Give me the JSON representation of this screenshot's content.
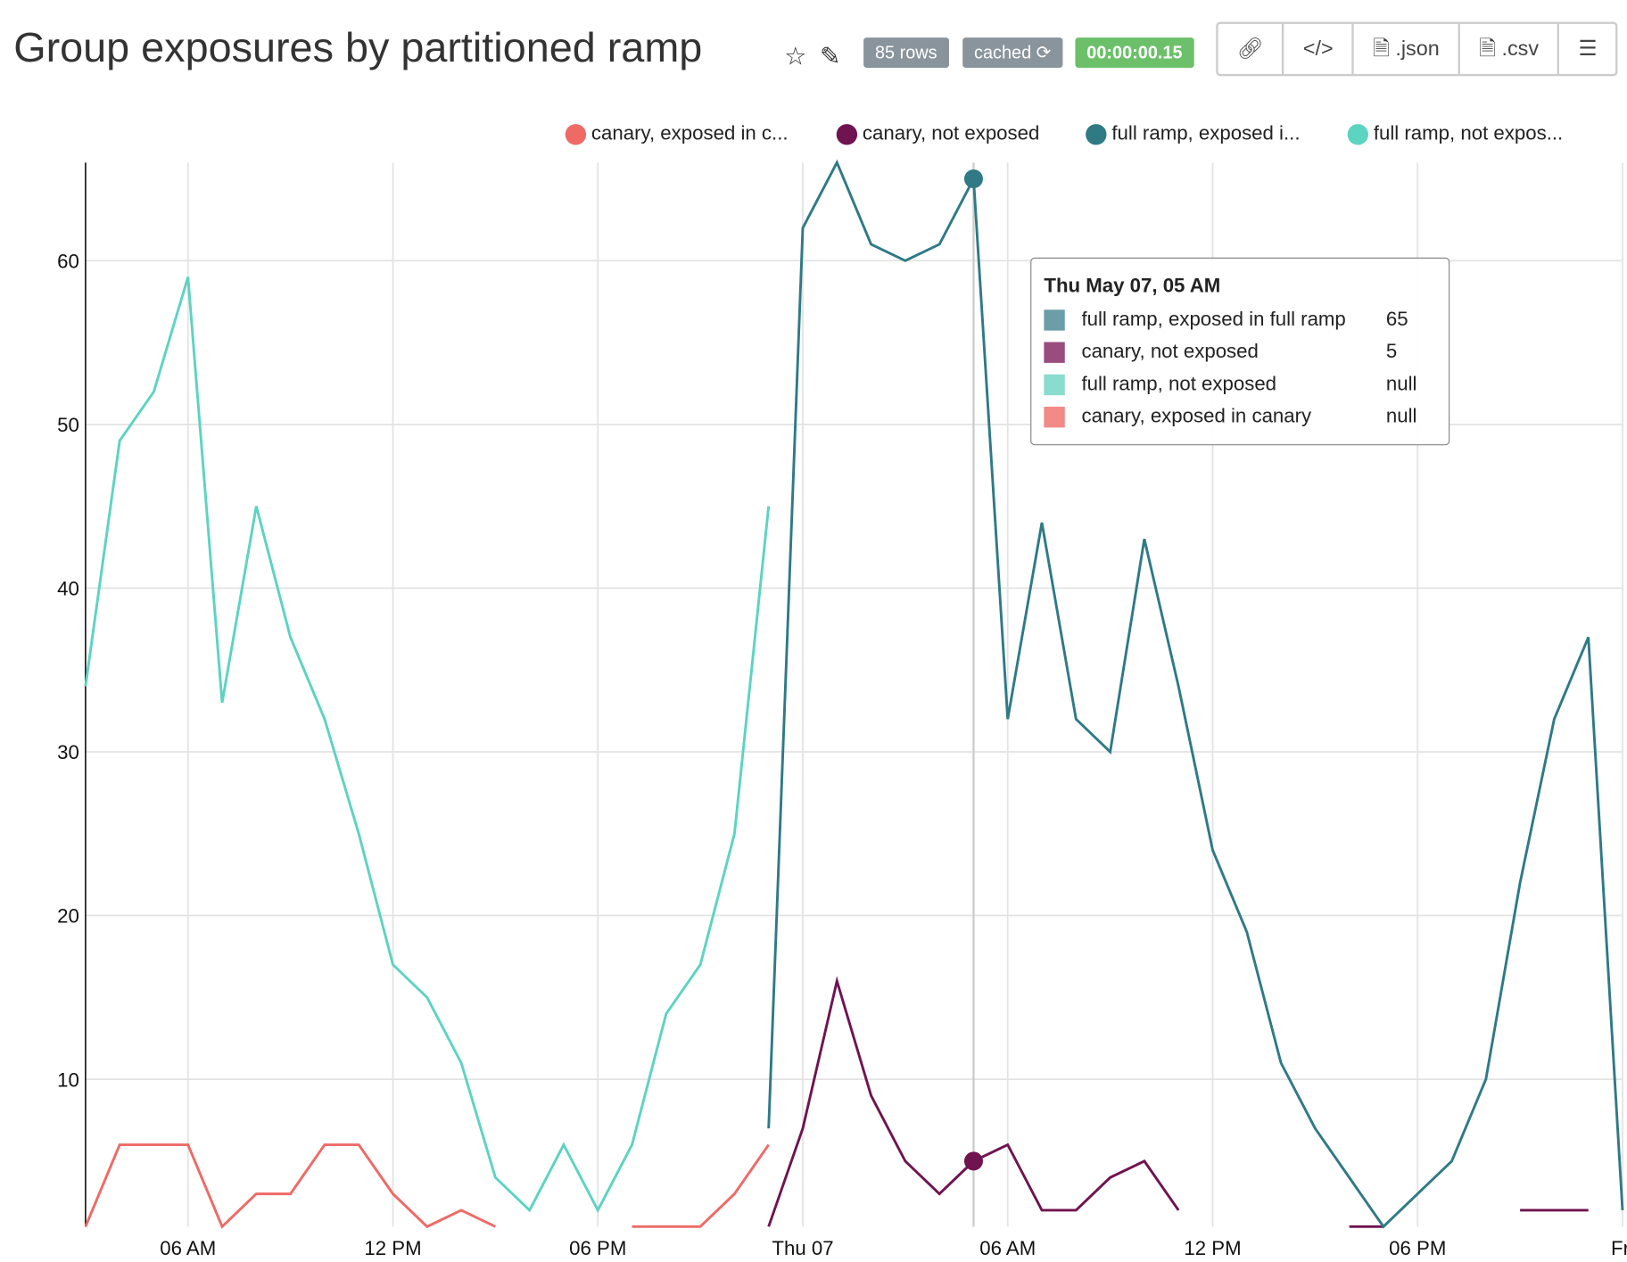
{
  "header": {
    "title": "Group exposures by partitioned ramp",
    "rows_badge": "85 rows",
    "cached_badge": "cached ⟳",
    "duration_badge": "00:00:00.15",
    "json_label": ".json",
    "csv_label": ".csv"
  },
  "colors": {
    "canary_exposed": "#ee6a67",
    "canary_not": "#6f1450",
    "full_exposed": "#2f7a85",
    "full_not": "#5dd3c2",
    "badge_gray": "#8a949c",
    "badge_green": "#6cc06a"
  },
  "tooltip": {
    "title": "Thu May 07, 05 AM",
    "rows": [
      {
        "label": "full ramp, exposed in full ramp",
        "value": "65",
        "color": "#6a9ea8"
      },
      {
        "label": "canary, not exposed",
        "value": "5",
        "color": "#9a4c7e"
      },
      {
        "label": "full ramp, not exposed",
        "value": "null",
        "color": "#8adccf"
      },
      {
        "label": "canary, exposed in canary",
        "value": "null",
        "color": "#f28a87"
      }
    ]
  },
  "chart_data": {
    "type": "line",
    "title": "Group exposures by partitioned ramp",
    "x_start": "Wed May 06, 03 AM",
    "x_step": "1 hour",
    "x_ticks": [
      {
        "i": 3,
        "label": "06 AM"
      },
      {
        "i": 9,
        "label": "12 PM"
      },
      {
        "i": 15,
        "label": "06 PM"
      },
      {
        "i": 21,
        "label": "Thu 07"
      },
      {
        "i": 27,
        "label": "06 AM"
      },
      {
        "i": 33,
        "label": "12 PM"
      },
      {
        "i": 39,
        "label": "06 PM"
      },
      {
        "i": 45,
        "label": "Fri"
      }
    ],
    "y_ticks": [
      10,
      20,
      30,
      40,
      50,
      60
    ],
    "ylim": [
      1,
      66
    ],
    "legend_position": "top-right",
    "series": [
      {
        "name": "canary, exposed in c...",
        "full_name": "canary, exposed in canary",
        "color": "#ee6a67",
        "start": 0,
        "values": [
          1,
          6,
          6,
          6,
          1,
          3,
          3,
          6,
          6,
          3,
          1,
          2,
          1,
          null,
          null,
          null,
          1,
          1,
          1,
          3,
          6
        ]
      },
      {
        "name": "canary, not exposed",
        "full_name": "canary, not exposed",
        "color": "#6f1450",
        "start": 20,
        "values": [
          1,
          7,
          16,
          9,
          5,
          3,
          5,
          6,
          2,
          2,
          4,
          5,
          2,
          null,
          null,
          null,
          null,
          1,
          1,
          null,
          null,
          null,
          2,
          2,
          2
        ]
      },
      {
        "name": "full ramp, exposed i...",
        "full_name": "full ramp, exposed in full ramp",
        "color": "#2f7a85",
        "start": 20,
        "values": [
          7,
          62,
          66,
          61,
          60,
          61,
          65,
          32,
          44,
          32,
          30,
          43,
          34,
          24,
          19,
          11,
          7,
          4,
          1,
          3,
          5,
          10,
          22,
          32,
          37,
          2
        ]
      },
      {
        "name": "full ramp, not expos...",
        "full_name": "full ramp, not exposed",
        "color": "#5dd3c2",
        "start": 0,
        "values": [
          34,
          49,
          52,
          59,
          33,
          45,
          37,
          32,
          25,
          17,
          15,
          11,
          4,
          2,
          6,
          2,
          6,
          14,
          17,
          25,
          45
        ]
      }
    ],
    "hover_index": 26
  }
}
